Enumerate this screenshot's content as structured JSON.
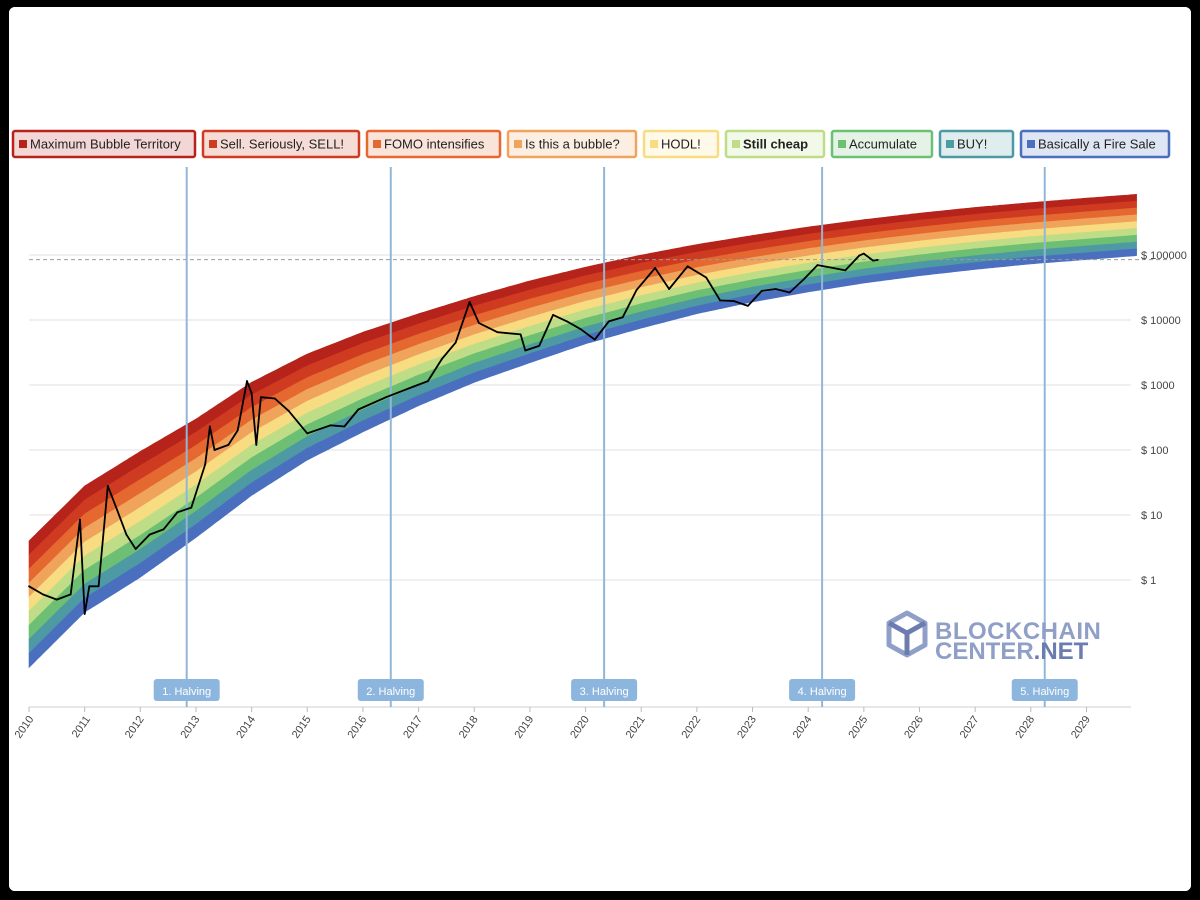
{
  "chart_data": {
    "type": "area",
    "title": "",
    "xlabel": "",
    "ylabel": "",
    "y_scale": "log",
    "ylim": [
      0.01,
      1000000
    ],
    "xlim": [
      "2010",
      "2029"
    ],
    "grid": true,
    "legend_position": "top",
    "x_ticks": [
      "2010",
      "2011",
      "2012",
      "2013",
      "2014",
      "2015",
      "2016",
      "2017",
      "2018",
      "2019",
      "2020",
      "2021",
      "2022",
      "2023",
      "2024",
      "2025",
      "2026",
      "2027",
      "2028",
      "2029"
    ],
    "y_ticks": [
      {
        "value": 1,
        "label": "$ 1"
      },
      {
        "value": 10,
        "label": "$ 10"
      },
      {
        "value": 100,
        "label": "$ 100"
      },
      {
        "value": 1000,
        "label": "$ 1000"
      },
      {
        "value": 10000,
        "label": "$ 10000"
      },
      {
        "value": 100000,
        "label": "$ 100000"
      }
    ],
    "bands": [
      {
        "name": "Maximum Bubble Territory",
        "color": "#b5231b",
        "bold": false
      },
      {
        "name": "Sell. Seriously, SELL!",
        "color": "#cf3b20",
        "bold": false
      },
      {
        "name": "FOMO intensifies",
        "color": "#e4682f",
        "bold": false
      },
      {
        "name": "Is this a bubble?",
        "color": "#f0a35a",
        "bold": false
      },
      {
        "name": "HODL!",
        "color": "#f8dc82",
        "bold": false
      },
      {
        "name": "Still cheap",
        "color": "#bedd86",
        "bold": true
      },
      {
        "name": "Accumulate",
        "color": "#6cbf73",
        "bold": false
      },
      {
        "name": "BUY!",
        "color": "#4e9aa4",
        "bold": false
      },
      {
        "name": "Basically a Fire Sale",
        "color": "#4a6fbf",
        "bold": false
      }
    ],
    "band_boundaries": {
      "bottom_edge": [
        {
          "x": "2010-01",
          "y": 0.045
        },
        {
          "x": "2011-01",
          "y": 0.32
        },
        {
          "x": "2012-01",
          "y": 1.1
        },
        {
          "x": "2013-01",
          "y": 4.5
        },
        {
          "x": "2014-01",
          "y": 20
        },
        {
          "x": "2015-01",
          "y": 70
        },
        {
          "x": "2016-01",
          "y": 190
        },
        {
          "x": "2017-01",
          "y": 480
        },
        {
          "x": "2018-01",
          "y": 1100
        },
        {
          "x": "2019-01",
          "y": 2200
        },
        {
          "x": "2020-01",
          "y": 4300
        },
        {
          "x": "2021-01",
          "y": 7500
        },
        {
          "x": "2022-01",
          "y": 12500
        },
        {
          "x": "2023-01",
          "y": 19000
        },
        {
          "x": "2024-01",
          "y": 27000
        },
        {
          "x": "2025-01",
          "y": 37000
        },
        {
          "x": "2026-01",
          "y": 48000
        },
        {
          "x": "2027-01",
          "y": 60000
        },
        {
          "x": "2028-01",
          "y": 73000
        },
        {
          "x": "2029-01",
          "y": 85000
        },
        {
          "x": "2029-12",
          "y": 98000
        }
      ],
      "top_edge": [
        {
          "x": "2010-01",
          "y": 4
        },
        {
          "x": "2011-01",
          "y": 28
        },
        {
          "x": "2012-01",
          "y": 95
        },
        {
          "x": "2013-01",
          "y": 300
        },
        {
          "x": "2014-01",
          "y": 1100
        },
        {
          "x": "2015-01",
          "y": 3000
        },
        {
          "x": "2016-01",
          "y": 6500
        },
        {
          "x": "2017-01",
          "y": 12500
        },
        {
          "x": "2018-01",
          "y": 23000
        },
        {
          "x": "2019-01",
          "y": 40000
        },
        {
          "x": "2020-01",
          "y": 65000
        },
        {
          "x": "2021-01",
          "y": 100000
        },
        {
          "x": "2022-01",
          "y": 145000
        },
        {
          "x": "2023-01",
          "y": 200000
        },
        {
          "x": "2024-01",
          "y": 270000
        },
        {
          "x": "2025-01",
          "y": 350000
        },
        {
          "x": "2026-01",
          "y": 440000
        },
        {
          "x": "2027-01",
          "y": 540000
        },
        {
          "x": "2028-01",
          "y": 640000
        },
        {
          "x": "2029-01",
          "y": 750000
        },
        {
          "x": "2029-12",
          "y": 860000
        }
      ]
    },
    "price_series": {
      "name": "",
      "color": "#000000",
      "points": [
        {
          "x": "2010-01",
          "y": 0.8
        },
        {
          "x": "2010-04",
          "y": 0.6
        },
        {
          "x": "2010-07",
          "y": 0.5
        },
        {
          "x": "2010-10",
          "y": 0.6
        },
        {
          "x": "2010-12",
          "y": 8.5
        },
        {
          "x": "2011-01",
          "y": 0.3
        },
        {
          "x": "2011-02",
          "y": 0.8
        },
        {
          "x": "2011-04",
          "y": 0.8
        },
        {
          "x": "2011-06",
          "y": 28
        },
        {
          "x": "2011-08",
          "y": 12
        },
        {
          "x": "2011-10",
          "y": 5
        },
        {
          "x": "2011-12",
          "y": 3
        },
        {
          "x": "2012-03",
          "y": 5
        },
        {
          "x": "2012-06",
          "y": 6
        },
        {
          "x": "2012-09",
          "y": 11
        },
        {
          "x": "2012-12",
          "y": 13
        },
        {
          "x": "2013-03",
          "y": 60
        },
        {
          "x": "2013-04",
          "y": 230
        },
        {
          "x": "2013-05",
          "y": 100
        },
        {
          "x": "2013-08",
          "y": 120
        },
        {
          "x": "2013-10",
          "y": 200
        },
        {
          "x": "2013-12",
          "y": 1150
        },
        {
          "x": "2014-01",
          "y": 750
        },
        {
          "x": "2014-02",
          "y": 120
        },
        {
          "x": "2014-03",
          "y": 650
        },
        {
          "x": "2014-06",
          "y": 620
        },
        {
          "x": "2014-09",
          "y": 400
        },
        {
          "x": "2015-01",
          "y": 180
        },
        {
          "x": "2015-06",
          "y": 240
        },
        {
          "x": "2015-09",
          "y": 230
        },
        {
          "x": "2015-12",
          "y": 420
        },
        {
          "x": "2016-06",
          "y": 650
        },
        {
          "x": "2016-12",
          "y": 950
        },
        {
          "x": "2017-03",
          "y": 1150
        },
        {
          "x": "2017-06",
          "y": 2500
        },
        {
          "x": "2017-09",
          "y": 4500
        },
        {
          "x": "2017-12",
          "y": 19000
        },
        {
          "x": "2018-02",
          "y": 9000
        },
        {
          "x": "2018-06",
          "y": 6500
        },
        {
          "x": "2018-11",
          "y": 6000
        },
        {
          "x": "2018-12",
          "y": 3400
        },
        {
          "x": "2019-03",
          "y": 4000
        },
        {
          "x": "2019-06",
          "y": 12000
        },
        {
          "x": "2019-09",
          "y": 9500
        },
        {
          "x": "2019-12",
          "y": 7200
        },
        {
          "x": "2020-03",
          "y": 5000
        },
        {
          "x": "2020-06",
          "y": 9500
        },
        {
          "x": "2020-09",
          "y": 11000
        },
        {
          "x": "2020-12",
          "y": 29000
        },
        {
          "x": "2021-04",
          "y": 63000
        },
        {
          "x": "2021-07",
          "y": 30000
        },
        {
          "x": "2021-11",
          "y": 67000
        },
        {
          "x": "2022-03",
          "y": 45000
        },
        {
          "x": "2022-06",
          "y": 20000
        },
        {
          "x": "2022-09",
          "y": 19500
        },
        {
          "x": "2022-12",
          "y": 16500
        },
        {
          "x": "2023-03",
          "y": 28000
        },
        {
          "x": "2023-06",
          "y": 30000
        },
        {
          "x": "2023-09",
          "y": 26500
        },
        {
          "x": "2023-12",
          "y": 42000
        },
        {
          "x": "2024-03",
          "y": 70000
        },
        {
          "x": "2024-06",
          "y": 64000
        },
        {
          "x": "2024-09",
          "y": 58000
        },
        {
          "x": "2024-12",
          "y": 98000
        },
        {
          "x": "2025-01",
          "y": 105000
        },
        {
          "x": "2025-03",
          "y": 82000
        },
        {
          "x": "2025-04",
          "y": 84000
        }
      ]
    },
    "reference_line": {
      "y": 85000,
      "style": "dashed"
    },
    "halvings": [
      {
        "label": "1. Halving",
        "x": "2012-11"
      },
      {
        "label": "2. Halving",
        "x": "2016-07"
      },
      {
        "label": "3. Halving",
        "x": "2020-05"
      },
      {
        "label": "4. Halving",
        "x": "2024-04"
      },
      {
        "label": "5. Halving",
        "x": "2028-04"
      }
    ]
  },
  "watermark": {
    "line1": "BLOCKCHAIN",
    "line2": "CENTER",
    "line2_suffix": ".NET",
    "color": "#8f9fc7",
    "accent_color": "#6c7cb0"
  }
}
